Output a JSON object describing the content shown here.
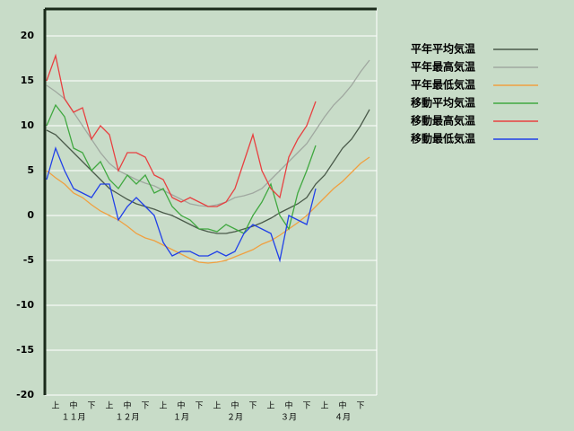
{
  "chart_data": {
    "type": "line",
    "xlim": [
      0,
      36
    ],
    "xticks": [
      {
        "value": 1,
        "label": "上"
      },
      {
        "value": 3,
        "label": "中"
      },
      {
        "value": 5,
        "label": "下"
      },
      {
        "value": 7,
        "label": "上"
      },
      {
        "value": 9,
        "label": "中"
      },
      {
        "value": 11,
        "label": "下"
      },
      {
        "value": 13,
        "label": "上"
      },
      {
        "value": 15,
        "label": "中"
      },
      {
        "value": 17,
        "label": "下"
      },
      {
        "value": 19,
        "label": "上"
      },
      {
        "value": 21,
        "label": "中"
      },
      {
        "value": 23,
        "label": "下"
      },
      {
        "value": 25,
        "label": "上"
      },
      {
        "value": 27,
        "label": "中"
      },
      {
        "value": 29,
        "label": "下"
      },
      {
        "value": 31,
        "label": "上"
      },
      {
        "value": 33,
        "label": "中"
      },
      {
        "value": 35,
        "label": "下"
      }
    ],
    "month_ticks": [
      {
        "value": 3,
        "label": "１１月"
      },
      {
        "value": 9,
        "label": "１２月"
      },
      {
        "value": 15,
        "label": "１月"
      },
      {
        "value": 21,
        "label": "２月"
      },
      {
        "value": 27,
        "label": "３月"
      },
      {
        "value": 33,
        "label": "４月"
      }
    ],
    "ylim": [
      -20,
      23
    ],
    "yticks": [
      -20,
      -15,
      -10,
      -5,
      0,
      5,
      10,
      15,
      20
    ],
    "grid": true,
    "series": [
      {
        "name": "平年平均気温",
        "color": "#4a5a4a",
        "values": [
          9.5,
          9,
          8,
          7,
          6,
          5,
          4,
          3,
          2.4,
          1.8,
          1.3,
          1,
          0.7,
          0.3,
          0,
          -0.5,
          -1,
          -1.5,
          -1.8,
          -2,
          -2,
          -1.8,
          -1.5,
          -1.2,
          -0.8,
          -0.3,
          0.3,
          0.8,
          1.3,
          2,
          3.5,
          4.5,
          6,
          7.5,
          8.5,
          10,
          11.8
        ]
      },
      {
        "name": "平年最高気温",
        "color": "#a0a8a0",
        "values": [
          14.5,
          13.8,
          13,
          11.5,
          10,
          8.5,
          7,
          5.8,
          5,
          4.5,
          4,
          3.6,
          3.3,
          2.8,
          2.3,
          1.8,
          1.3,
          1.1,
          1,
          1.2,
          1.5,
          2,
          2.2,
          2.5,
          3,
          4,
          5,
          6,
          7,
          8,
          9.5,
          11,
          12.3,
          13.3,
          14.5,
          16,
          17.3
        ]
      },
      {
        "name": "平年最低気温",
        "color": "#f0a040",
        "values": [
          5,
          4.2,
          3.5,
          2.5,
          2,
          1.2,
          0.5,
          0,
          -0.5,
          -1.2,
          -2,
          -2.5,
          -2.8,
          -3.3,
          -3.8,
          -4.3,
          -4.8,
          -5.2,
          -5.3,
          -5.2,
          -5,
          -4.6,
          -4.2,
          -3.8,
          -3.2,
          -2.8,
          -2.2,
          -1.5,
          -0.8,
          0,
          1,
          2,
          3,
          3.8,
          4.8,
          5.8,
          6.5
        ]
      },
      {
        "name": "移動平均気温",
        "color": "#40a840",
        "values": [
          10,
          12.3,
          11,
          7.5,
          7,
          5,
          6,
          4,
          3,
          4.5,
          3.5,
          4.5,
          2.5,
          3,
          1,
          0,
          -0.5,
          -1.5,
          -1.5,
          -1.8,
          -1,
          -1.5,
          -2,
          0,
          1.5,
          3.5,
          0,
          -1.5,
          2.5,
          5,
          7.8,
          null,
          null,
          null,
          null,
          null,
          null
        ]
      },
      {
        "name": "移動最高気温",
        "color": "#e84040",
        "values": [
          15,
          17.8,
          13,
          11.5,
          12,
          8.5,
          10,
          9,
          5,
          7,
          7,
          6.5,
          4.5,
          4,
          2,
          1.5,
          2,
          1.5,
          1,
          1,
          1.5,
          3,
          6,
          9,
          5,
          3,
          2,
          6.5,
          8.5,
          10,
          12.7,
          null,
          null,
          null,
          null,
          null,
          null
        ]
      },
      {
        "name": "移動最低気温",
        "color": "#2040e8",
        "values": [
          4,
          7.5,
          5,
          3,
          2.5,
          2,
          3.5,
          3.5,
          -0.5,
          1,
          2,
          1,
          0,
          -3,
          -4.5,
          -4,
          -4,
          -4.5,
          -4.5,
          -4,
          -4.5,
          -4,
          -2,
          -1,
          -1.5,
          -2,
          -5,
          0,
          -0.5,
          -1,
          3,
          null,
          null,
          null,
          null,
          null,
          null
        ]
      }
    ]
  }
}
